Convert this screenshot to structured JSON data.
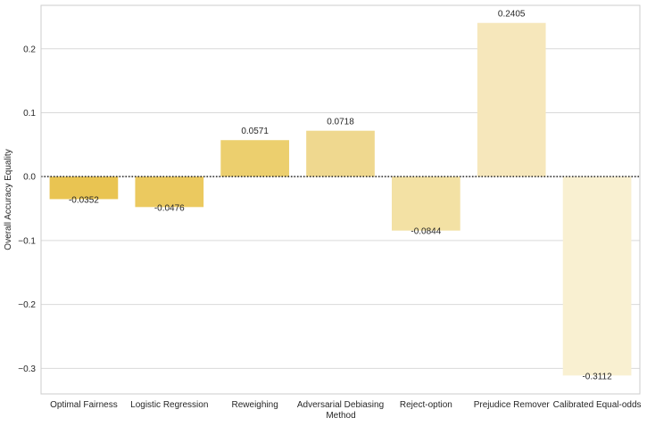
{
  "chart_data": {
    "type": "bar",
    "title": "",
    "xlabel": "Method",
    "ylabel": "Overall Accuracy Equality",
    "categories": [
      "Optimal Fairness",
      "Logistic Regression",
      "Reweighing",
      "Adversarial Debiasing",
      "Reject-option",
      "Prejudice Remover",
      "Calibrated Equal-odds"
    ],
    "values": [
      -0.0352,
      -0.0476,
      0.0571,
      0.0718,
      -0.0844,
      0.2405,
      -0.3112
    ],
    "value_labels": [
      "-0.0352",
      "-0.0476",
      "0.0571",
      "0.0718",
      "-0.0844",
      "0.2405",
      "-0.3112"
    ],
    "bar_colors": [
      "#e9c452",
      "#ebc95f",
      "#eccf6e",
      "#efd88f",
      "#f3e1a4",
      "#f6e7bb",
      "#f9f0d1"
    ],
    "ylim": [
      -0.34,
      0.268
    ],
    "yticks": [
      -0.3,
      -0.2,
      -0.1,
      0.0,
      0.1,
      0.2
    ],
    "ytick_labels": [
      "−0.3",
      "−0.2",
      "−0.1",
      "0.0",
      "0.1",
      "0.2"
    ],
    "grid": true,
    "grid_color": "#d9d9d9",
    "baseline": 0.0,
    "baseline_style": "dotted"
  }
}
